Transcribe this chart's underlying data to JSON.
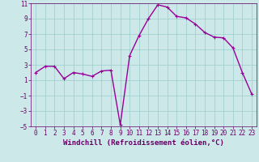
{
  "title": "",
  "xlabel": "Windchill (Refroidissement éolien,°C)",
  "hours": [
    0,
    1,
    2,
    3,
    4,
    5,
    6,
    7,
    8,
    9,
    10,
    11,
    12,
    13,
    14,
    15,
    16,
    17,
    18,
    19,
    20,
    21,
    22,
    23
  ],
  "values": [
    2.0,
    2.8,
    2.8,
    1.2,
    2.0,
    1.8,
    1.5,
    2.2,
    2.3,
    -4.8,
    4.2,
    6.8,
    9.0,
    10.8,
    10.5,
    9.3,
    9.1,
    8.3,
    7.2,
    6.6,
    6.5,
    5.2,
    2.0,
    -0.8
  ],
  "line_color": "#990099",
  "marker": "+",
  "marker_color": "#990099",
  "bg_color": "#cce8e8",
  "grid_color": "#99cccc",
  "tick_color": "#660066",
  "label_color": "#660066",
  "ylim": [
    -5,
    11
  ],
  "xlim": [
    -0.5,
    23.5
  ],
  "yticks": [
    -5,
    -3,
    -1,
    1,
    3,
    5,
    7,
    9,
    11
  ],
  "xticks": [
    0,
    1,
    2,
    3,
    4,
    5,
    6,
    7,
    8,
    9,
    10,
    11,
    12,
    13,
    14,
    15,
    16,
    17,
    18,
    19,
    20,
    21,
    22,
    23
  ],
  "xlabel_fontsize": 6.5,
  "tick_fontsize": 5.5,
  "linewidth": 1.0,
  "marker_size": 3.5
}
